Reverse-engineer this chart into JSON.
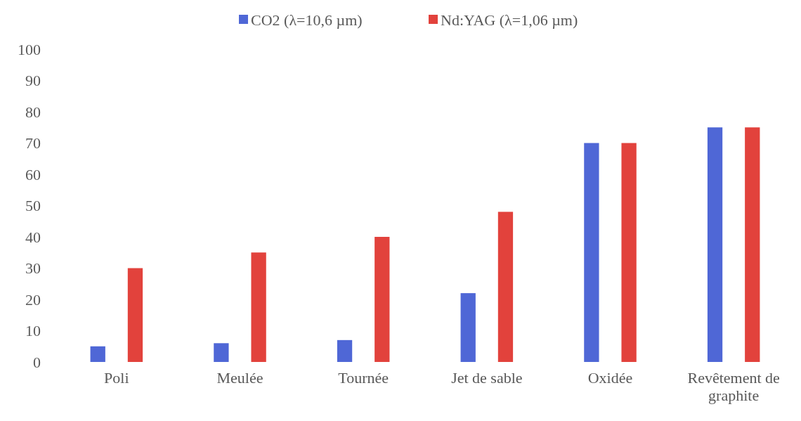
{
  "chart_data": {
    "type": "bar",
    "categories": [
      "Poli",
      "Meulée",
      "Tournée",
      "Jet de sable",
      "Oxidée",
      "Revêtement de graphite"
    ],
    "series": [
      {
        "name": "CO2 (λ=10,6 µm)",
        "color": "#4f67d6",
        "values": [
          5,
          6,
          7,
          22,
          70,
          75
        ]
      },
      {
        "name": "Nd:YAG (λ=1,06 µm)",
        "color": "#e2423c",
        "values": [
          30,
          35,
          40,
          48,
          70,
          75
        ]
      }
    ],
    "ylim": [
      0,
      100
    ],
    "yticks": [
      0,
      10,
      20,
      30,
      40,
      50,
      60,
      70,
      80,
      90,
      100
    ],
    "grid": false,
    "legend": "top"
  }
}
